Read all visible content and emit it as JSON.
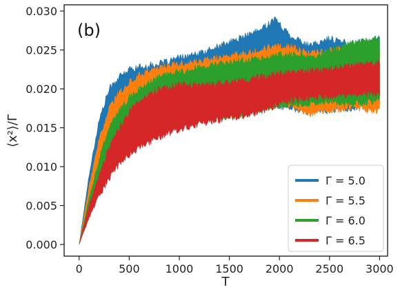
{
  "chart_data": {
    "type": "area",
    "panel_label": "(b)",
    "xlabel": "T",
    "ylabel": "⟨x²⟩/Γ",
    "xlim": [
      -150,
      3080
    ],
    "ylim": [
      -0.0015,
      0.0308
    ],
    "x_ticks": [
      0,
      500,
      1000,
      1500,
      2000,
      2500,
      3000
    ],
    "y_ticks": [
      0.0,
      0.005,
      0.01,
      0.015,
      0.02,
      0.025,
      0.03
    ],
    "y_tick_labels": [
      "0.000",
      "0.005",
      "0.010",
      "0.015",
      "0.020",
      "0.025",
      "0.030"
    ],
    "grid": false,
    "legend_position": "lower right",
    "series": [
      {
        "name": "Γ = 5.0",
        "color": "#1f77b4",
        "x": [
          0,
          100,
          200,
          300,
          400,
          500,
          600,
          800,
          1000,
          1200,
          1400,
          1600,
          1800,
          1950,
          2100,
          2300,
          2500,
          2700,
          3000
        ],
        "upper": [
          0,
          0.009,
          0.016,
          0.02,
          0.0215,
          0.0225,
          0.0228,
          0.0232,
          0.024,
          0.0245,
          0.0255,
          0.0265,
          0.0275,
          0.029,
          0.027,
          0.0255,
          0.0265,
          0.0258,
          0.0265
        ],
        "lower": [
          0,
          0.005,
          0.009,
          0.012,
          0.0138,
          0.0148,
          0.0155,
          0.016,
          0.0165,
          0.0168,
          0.017,
          0.0172,
          0.0175,
          0.0178,
          0.0175,
          0.017,
          0.0172,
          0.0175,
          0.0178
        ]
      },
      {
        "name": "Γ = 5.5",
        "color": "#ff7f0e",
        "x": [
          0,
          100,
          200,
          300,
          400,
          500,
          600,
          800,
          1000,
          1200,
          1400,
          1600,
          1800,
          1950,
          2100,
          2300,
          2500,
          2700,
          3000
        ],
        "upper": [
          0,
          0.0075,
          0.0135,
          0.0175,
          0.0195,
          0.0208,
          0.0218,
          0.0228,
          0.0232,
          0.0235,
          0.024,
          0.0245,
          0.025,
          0.0255,
          0.0255,
          0.0245,
          0.025,
          0.0252,
          0.025
        ],
        "lower": [
          0,
          0.0045,
          0.008,
          0.011,
          0.0128,
          0.014,
          0.0148,
          0.0155,
          0.016,
          0.0165,
          0.0168,
          0.0172,
          0.0175,
          0.0178,
          0.0178,
          0.0168,
          0.0172,
          0.0175,
          0.0172
        ]
      },
      {
        "name": "Γ = 6.0",
        "color": "#2ca02c",
        "x": [
          0,
          100,
          200,
          300,
          400,
          500,
          600,
          800,
          1000,
          1200,
          1400,
          1600,
          1800,
          1950,
          2100,
          2300,
          2500,
          2700,
          3000
        ],
        "upper": [
          0,
          0.006,
          0.011,
          0.015,
          0.0172,
          0.0188,
          0.02,
          0.0215,
          0.0222,
          0.0228,
          0.0232,
          0.0236,
          0.024,
          0.0243,
          0.0245,
          0.0242,
          0.0248,
          0.0258,
          0.0265
        ],
        "lower": [
          0,
          0.004,
          0.0072,
          0.0098,
          0.0115,
          0.0128,
          0.0138,
          0.015,
          0.0155,
          0.0158,
          0.0162,
          0.0167,
          0.0172,
          0.0178,
          0.018,
          0.018,
          0.0183,
          0.018,
          0.0185
        ]
      },
      {
        "name": "Γ = 6.5",
        "color": "#d62728",
        "x": [
          0,
          100,
          200,
          300,
          400,
          500,
          600,
          800,
          1000,
          1200,
          1400,
          1600,
          1800,
          1950,
          2100,
          2300,
          2500,
          2700,
          3000
        ],
        "upper": [
          0,
          0.005,
          0.009,
          0.0125,
          0.015,
          0.017,
          0.0185,
          0.02,
          0.0205,
          0.0205,
          0.0207,
          0.021,
          0.0215,
          0.0218,
          0.0222,
          0.0223,
          0.0225,
          0.023,
          0.0235
        ],
        "lower": [
          0,
          0.0035,
          0.0062,
          0.0085,
          0.0102,
          0.0115,
          0.0125,
          0.0138,
          0.0148,
          0.0155,
          0.016,
          0.0165,
          0.017,
          0.0178,
          0.0185,
          0.0188,
          0.019,
          0.0192,
          0.0195
        ]
      }
    ]
  }
}
